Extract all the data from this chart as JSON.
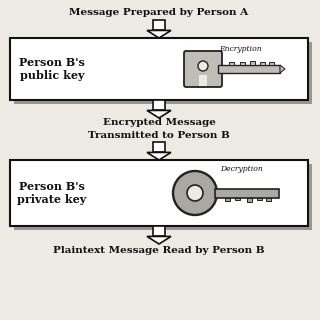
{
  "bg_color": "#ede9e3",
  "title_top": "Message Prepared by Person A",
  "title_mid": "Encrypted Message\nTransmitted to Person B",
  "title_bot": "Plaintext Message Read by Person B",
  "box1_label": "Person B's\npublic key",
  "box2_label": "Person B's\nprivate key",
  "box1_key_label": "Encryption",
  "box2_key_label": "Decryption",
  "box_color": "#ffffff",
  "box_edge_color": "#111111",
  "arrow_fill": "#ffffff",
  "arrow_edge": "#111111",
  "key1_color": "#c0bdb8",
  "key2_color": "#aaa8a3",
  "shadow_color": "#999693"
}
